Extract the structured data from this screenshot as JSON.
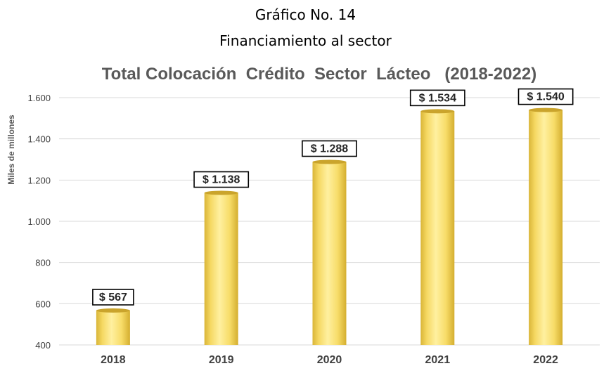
{
  "caption": {
    "line1": "Gráfico No. 14",
    "line2": "Financiamiento al sector"
  },
  "colors": {
    "bar_light": "#fff1a6",
    "bar_main": "#ffe066",
    "bar_dark": "#d8b431",
    "bar_top": "#c9a32a",
    "grid": "#d9d9d9",
    "title": "#595959",
    "tick": "#595959"
  },
  "chart_data": {
    "type": "bar",
    "title": "Total Colocación  Crédito  Sector  Lácteo   (2018-2022)",
    "xlabel": "",
    "ylabel": "Miles de millones",
    "categories": [
      "2018",
      "2019",
      "2020",
      "2021",
      "2022"
    ],
    "values": [
      567,
      1138,
      1288,
      1534,
      1540
    ],
    "data_labels": [
      "$ 567",
      "$ 1.138",
      "$ 1.288",
      "$ 1.534",
      "$ 1.540"
    ],
    "ylim": [
      400,
      1600
    ],
    "yticks": [
      400,
      600,
      800,
      1000,
      1200,
      1400,
      1600
    ],
    "ytick_labels": [
      "400",
      "600",
      "800",
      "1.000",
      "1.200",
      "1.400",
      "1.600"
    ],
    "grid": true,
    "legend": "none"
  }
}
